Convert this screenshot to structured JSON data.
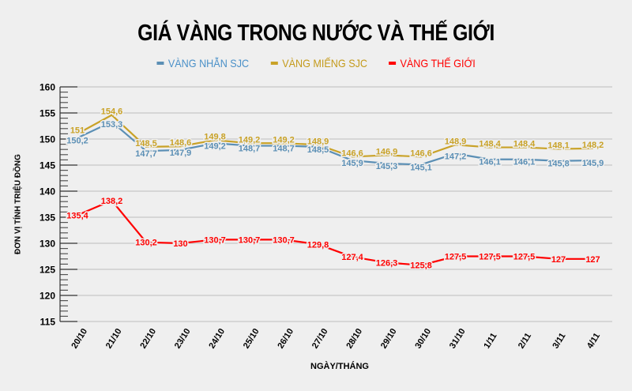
{
  "title": "GIÁ VÀNG TRONG NƯỚC VÀ THẾ GIỚI",
  "legend": [
    {
      "label": "VÀNG NHẪN SJC",
      "color": "#4a90c8",
      "line_color": "#5b8fb5"
    },
    {
      "label": "VÀNG MIẾNG SJC",
      "color": "#c49a1a",
      "line_color": "#c9a227"
    },
    {
      "label": "VÀNG THẾ GIỚI",
      "color": "#ff0000",
      "line_color": "#ff0000"
    }
  ],
  "axes": {
    "ylabel": "ĐƠN VỊ TÍNH TRIỆU ĐỒNG",
    "xlabel": "NGÀY/THÁNG"
  },
  "chart_data": {
    "type": "line",
    "title": "GIÁ VÀNG TRONG NƯỚC VÀ THẾ GIỚI",
    "xlabel": "NGÀY/THÁNG",
    "ylabel": "ĐƠN VỊ TÍNH TRIỆU ĐỒNG",
    "ylim": [
      115,
      160
    ],
    "yticks": [
      115,
      120,
      125,
      130,
      135,
      140,
      145,
      150,
      155,
      160
    ],
    "grid": true,
    "legend_position": "top",
    "categories": [
      "20/10",
      "21/10",
      "22/10",
      "23/10",
      "24/10",
      "25/10",
      "26/10",
      "27/10",
      "28/10",
      "29/10",
      "30/10",
      "31/10",
      "1/11",
      "2/11",
      "3/11",
      "4/11"
    ],
    "series": [
      {
        "name": "VÀNG NHẪN SJC",
        "color": "#5b8fb5",
        "values": [
          150.2,
          153.3,
          147.7,
          147.9,
          149.2,
          148.7,
          148.7,
          148.5,
          145.9,
          145.3,
          145.1,
          147.2,
          146.1,
          146.1,
          145.8,
          145.9
        ],
        "labels": [
          "150,2",
          "153,3",
          "147,7",
          "147,9",
          "149,2",
          "148,7",
          "148,7",
          "148,5",
          "145,9",
          "145,3",
          "145,1",
          "147,2",
          "146,1",
          "146,1",
          "145,8",
          "145,9"
        ]
      },
      {
        "name": "VÀNG MIẾNG SJC",
        "color": "#c9a227",
        "values": [
          151,
          154.6,
          148.5,
          148.6,
          149.8,
          149.2,
          149.2,
          148.9,
          146.6,
          146.9,
          146.6,
          148.9,
          148.4,
          148.4,
          148.1,
          148.2
        ],
        "labels": [
          "151",
          "154,6",
          "148,5",
          "148,6",
          "149,8",
          "149,2",
          "149,2",
          "148,9",
          "146,6",
          "146,9",
          "146,6",
          "148,9",
          "148,4",
          "148,4",
          "148,1",
          "148,2"
        ]
      },
      {
        "name": "VÀNG THẾ GIỚI",
        "color": "#ff0000",
        "values": [
          135.4,
          138.2,
          130.2,
          130,
          130.7,
          130.7,
          130.7,
          129.8,
          127.4,
          126.3,
          125.8,
          127.5,
          127.5,
          127.5,
          127,
          127
        ],
        "labels": [
          "135,4",
          "138,2",
          "130,2",
          "130",
          "130,7",
          "130,7",
          "130,7",
          "129,8",
          "127,4",
          "126,3",
          "125,8",
          "127,5",
          "127,5",
          "127,5",
          "127",
          "127"
        ]
      }
    ]
  }
}
